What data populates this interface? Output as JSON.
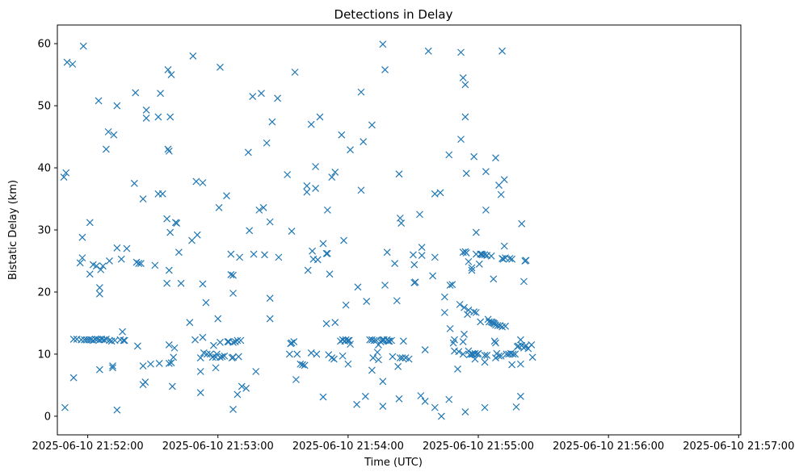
{
  "chart_data": {
    "type": "scatter",
    "title": "Detections in Delay",
    "xlabel": "Time (UTC)",
    "ylabel": "Bistatic Delay (km)",
    "marker": "x",
    "color": "#1f77b4",
    "grid": false,
    "x_range_seconds": [
      -14,
      301
    ],
    "ylim": [
      -3,
      63
    ],
    "x_ticks": [
      {
        "label": "2025-06-10 21:52:00",
        "offset_s": 0
      },
      {
        "label": "2025-06-10 21:53:00",
        "offset_s": 60
      },
      {
        "label": "2025-06-10 21:54:00",
        "offset_s": 120
      },
      {
        "label": "2025-06-10 21:55:00",
        "offset_s": 180
      },
      {
        "label": "2025-06-10 21:56:00",
        "offset_s": 240
      },
      {
        "label": "2025-06-10 21:57:00",
        "offset_s": 300
      }
    ],
    "y_ticks": [
      0,
      10,
      20,
      30,
      40,
      50,
      60
    ],
    "x_unit_note": "x values are seconds after 2025-06-10 21:52:00 UTC",
    "points": [
      [
        -11,
        38.5
      ],
      [
        -10,
        39.2
      ],
      [
        -10.5,
        1.4
      ],
      [
        -9.5,
        57
      ],
      [
        -7,
        56.7
      ],
      [
        -6.5,
        12.4
      ],
      [
        -6.5,
        6.2
      ],
      [
        -5,
        12.4
      ],
      [
        -3.5,
        24.7
      ],
      [
        -3,
        12.3
      ],
      [
        -2.5,
        28.8
      ],
      [
        -2.5,
        25.5
      ],
      [
        -2,
        59.6
      ],
      [
        -1.5,
        12.3
      ],
      [
        -0.5,
        12.3
      ],
      [
        0.5,
        12.3
      ],
      [
        1,
        31.2
      ],
      [
        1,
        22.9
      ],
      [
        1.5,
        12.3
      ],
      [
        2.5,
        12.2
      ],
      [
        2.5,
        24.4
      ],
      [
        3.5,
        12.4
      ],
      [
        4,
        24.2
      ],
      [
        4.5,
        12.4
      ],
      [
        5,
        50.8
      ],
      [
        5.5,
        12.3
      ],
      [
        5.5,
        20.7
      ],
      [
        5.5,
        19.7
      ],
      [
        5.5,
        7.5
      ],
      [
        6,
        23.6
      ],
      [
        6.5,
        12.4
      ],
      [
        7,
        24.2
      ],
      [
        7.5,
        12.3
      ],
      [
        8.5,
        43
      ],
      [
        8.5,
        12.4
      ],
      [
        9.5,
        45.8
      ],
      [
        10,
        12.2
      ],
      [
        10,
        25
      ],
      [
        11,
        12.1
      ],
      [
        11.5,
        8.1
      ],
      [
        11.5,
        7.8
      ],
      [
        12,
        45.3
      ],
      [
        12.5,
        12.2
      ],
      [
        13.5,
        50
      ],
      [
        13.5,
        27.1
      ],
      [
        13.5,
        1
      ],
      [
        15,
        12.3
      ],
      [
        15.5,
        25.3
      ],
      [
        16,
        13.6
      ],
      [
        16.5,
        12.2
      ],
      [
        17,
        12.2
      ],
      [
        18,
        27
      ],
      [
        21.5,
        37.5
      ],
      [
        22,
        52.1
      ],
      [
        22.5,
        24.8
      ],
      [
        23,
        11.3
      ],
      [
        23.5,
        24.6
      ],
      [
        24.5,
        24.6
      ],
      [
        25.5,
        8.1
      ],
      [
        25.5,
        35
      ],
      [
        25.5,
        5.1
      ],
      [
        26.5,
        5.5
      ],
      [
        27,
        49.3
      ],
      [
        27,
        48
      ],
      [
        29,
        8.4
      ],
      [
        31,
        24.3
      ],
      [
        32.5,
        48.2
      ],
      [
        32.5,
        35.8
      ],
      [
        33,
        8.5
      ],
      [
        33.5,
        52
      ],
      [
        34.5,
        35.8
      ],
      [
        36.5,
        31.8
      ],
      [
        36.5,
        21.4
      ],
      [
        37,
        55.8
      ],
      [
        37,
        43
      ],
      [
        37.5,
        42.7
      ],
      [
        37.5,
        23.5
      ],
      [
        37.5,
        11.5
      ],
      [
        37.5,
        8.5
      ],
      [
        38,
        48.2
      ],
      [
        38,
        29.6
      ],
      [
        38.5,
        55
      ],
      [
        38.5,
        8.6
      ],
      [
        39,
        4.8
      ],
      [
        39.5,
        9.5
      ],
      [
        40,
        11
      ],
      [
        40.5,
        31.2
      ],
      [
        41,
        31.1
      ],
      [
        42,
        26.4
      ],
      [
        43,
        21.4
      ],
      [
        47,
        15.1
      ],
      [
        48,
        28.3
      ],
      [
        48.5,
        58
      ],
      [
        49.5,
        12.3
      ],
      [
        50,
        37.8
      ],
      [
        50.5,
        29.2
      ],
      [
        52,
        3.8
      ],
      [
        52,
        9.4
      ],
      [
        52,
        7.2
      ],
      [
        53,
        37.6
      ],
      [
        53,
        21.3
      ],
      [
        53,
        12.7
      ],
      [
        53.5,
        10.2
      ],
      [
        54.5,
        18.3
      ],
      [
        55,
        10
      ],
      [
        56.5,
        10
      ],
      [
        57.5,
        9.5
      ],
      [
        58,
        11.4
      ],
      [
        59,
        7.8
      ],
      [
        59,
        9.5
      ],
      [
        59.5,
        10
      ],
      [
        60,
        15.7
      ],
      [
        60.5,
        33.6
      ],
      [
        61,
        56.2
      ],
      [
        61,
        9.5
      ],
      [
        61,
        11.9
      ],
      [
        62,
        9.6
      ],
      [
        63,
        9.7
      ],
      [
        64,
        35.5
      ],
      [
        64.5,
        12
      ],
      [
        65,
        12
      ],
      [
        66,
        26.1
      ],
      [
        66,
        22.8
      ],
      [
        66.5,
        9.4
      ],
      [
        67,
        22.7
      ],
      [
        67,
        19.8
      ],
      [
        67,
        11.9
      ],
      [
        67,
        9.5
      ],
      [
        67,
        1.1
      ],
      [
        68,
        12
      ],
      [
        69,
        12.2
      ],
      [
        69,
        3.5
      ],
      [
        69.5,
        9.6
      ],
      [
        70,
        25.6
      ],
      [
        70.5,
        12.2
      ],
      [
        71,
        4.8
      ],
      [
        73,
        4.5
      ],
      [
        74,
        42.5
      ],
      [
        74.5,
        29.9
      ],
      [
        76,
        51.5
      ],
      [
        76.5,
        26.1
      ],
      [
        77.5,
        7.2
      ],
      [
        79,
        33.2
      ],
      [
        80,
        52
      ],
      [
        81,
        33.6
      ],
      [
        81.5,
        26
      ],
      [
        82.5,
        44
      ],
      [
        84,
        31.3
      ],
      [
        84,
        15.7
      ],
      [
        84,
        19
      ],
      [
        85,
        47.4
      ],
      [
        87.5,
        51.2
      ],
      [
        88,
        25.6
      ],
      [
        92,
        38.9
      ],
      [
        93,
        10
      ],
      [
        93.5,
        11.7
      ],
      [
        94,
        11.8
      ],
      [
        94,
        29.8
      ],
      [
        95,
        12
      ],
      [
        95.5,
        55.4
      ],
      [
        96,
        5.9
      ],
      [
        96.5,
        10
      ],
      [
        98,
        8.4
      ],
      [
        99,
        8.3
      ],
      [
        100,
        8.2
      ],
      [
        101,
        37.1
      ],
      [
        101,
        36.1
      ],
      [
        101.5,
        23.5
      ],
      [
        103,
        47
      ],
      [
        103,
        10.2
      ],
      [
        103.5,
        26.6
      ],
      [
        104,
        25.3
      ],
      [
        105,
        36.7
      ],
      [
        105,
        40.2
      ],
      [
        105.5,
        10
      ],
      [
        106,
        25.2
      ],
      [
        107,
        48.2
      ],
      [
        108.5,
        3.1
      ],
      [
        108.5,
        27.8
      ],
      [
        110,
        26.2
      ],
      [
        110,
        14.9
      ],
      [
        110.5,
        26.2
      ],
      [
        110.5,
        33.2
      ],
      [
        111,
        9.9
      ],
      [
        111.5,
        22.9
      ],
      [
        112.5,
        38.5
      ],
      [
        112.5,
        9.4
      ],
      [
        113.5,
        9.2
      ],
      [
        114,
        39.3
      ],
      [
        114,
        15.1
      ],
      [
        116.5,
        12.1
      ],
      [
        117,
        45.3
      ],
      [
        117.5,
        12.3
      ],
      [
        117.5,
        9.7
      ],
      [
        118,
        28.3
      ],
      [
        118.5,
        12.1
      ],
      [
        119,
        17.9
      ],
      [
        119,
        12.3
      ],
      [
        120,
        12.2
      ],
      [
        120,
        8.4
      ],
      [
        120.5,
        12.2
      ],
      [
        121,
        42.9
      ],
      [
        121,
        11.6
      ],
      [
        124,
        1.9
      ],
      [
        124.5,
        20.8
      ],
      [
        126,
        36.4
      ],
      [
        126,
        52.2
      ],
      [
        127,
        44.2
      ],
      [
        128,
        3.2
      ],
      [
        128.5,
        18.5
      ],
      [
        130,
        12.3
      ],
      [
        131,
        46.9
      ],
      [
        131,
        12.3
      ],
      [
        131,
        7.4
      ],
      [
        131.5,
        9.4
      ],
      [
        132,
        12.2
      ],
      [
        133,
        12.2
      ],
      [
        133.5,
        10.3
      ],
      [
        134,
        11.5
      ],
      [
        134,
        9.1
      ],
      [
        135,
        12
      ],
      [
        135.5,
        12.2
      ],
      [
        136,
        12.3
      ],
      [
        136,
        59.9
      ],
      [
        136,
        1.6
      ],
      [
        136,
        5.6
      ],
      [
        136.5,
        12.3
      ],
      [
        137,
        55.8
      ],
      [
        137,
        21.1
      ],
      [
        138,
        12.3
      ],
      [
        138,
        26.4
      ],
      [
        138.5,
        12.1
      ],
      [
        139,
        12.1
      ],
      [
        140,
        12.2
      ],
      [
        140.5,
        9.6
      ],
      [
        141.5,
        24.6
      ],
      [
        142.5,
        18.6
      ],
      [
        143,
        8
      ],
      [
        143.5,
        39
      ],
      [
        143.5,
        2.8
      ],
      [
        144,
        9.4
      ],
      [
        144,
        31.9
      ],
      [
        144.5,
        31.1
      ],
      [
        145,
        9.4
      ],
      [
        145.5,
        12.1
      ],
      [
        146.5,
        9.4
      ],
      [
        148,
        9.2
      ],
      [
        150,
        26
      ],
      [
        150.5,
        21.5
      ],
      [
        150.5,
        24.4
      ],
      [
        151,
        21.6
      ],
      [
        153,
        32.5
      ],
      [
        153.5,
        3.3
      ],
      [
        154,
        27.2
      ],
      [
        154,
        25.9
      ],
      [
        155.5,
        2.4
      ],
      [
        155.5,
        10.7
      ],
      [
        157,
        58.8
      ],
      [
        159,
        22.6
      ],
      [
        160,
        35.8
      ],
      [
        160,
        25.6
      ],
      [
        160,
        1.4
      ],
      [
        162.5,
        36
      ],
      [
        163,
        0
      ],
      [
        164.5,
        16.7
      ],
      [
        164.5,
        19.2
      ],
      [
        166.5,
        42.1
      ],
      [
        166.5,
        2.7
      ],
      [
        167,
        14.1
      ],
      [
        167,
        21.1
      ],
      [
        168,
        21.2
      ],
      [
        168.5,
        11.8
      ],
      [
        169,
        12.3
      ],
      [
        169,
        10.5
      ],
      [
        170.5,
        7.6
      ],
      [
        171,
        10.4
      ],
      [
        171.5,
        18
      ],
      [
        172,
        58.6
      ],
      [
        172,
        44.6
      ],
      [
        173,
        54.5
      ],
      [
        173,
        26.4
      ],
      [
        173,
        12
      ],
      [
        173,
        10
      ],
      [
        173.5,
        13.2
      ],
      [
        173.5,
        17.5
      ],
      [
        174,
        48.2
      ],
      [
        174,
        53.4
      ],
      [
        174,
        26.5
      ],
      [
        174,
        0.7
      ],
      [
        174.5,
        39.1
      ],
      [
        174.5,
        26.3
      ],
      [
        175,
        16.4
      ],
      [
        175.5,
        17.1
      ],
      [
        175.5,
        24.9
      ],
      [
        175.5,
        10.5
      ],
      [
        176,
        9.9
      ],
      [
        177,
        23.5
      ],
      [
        177,
        23.9
      ],
      [
        177,
        10
      ],
      [
        177.5,
        10
      ],
      [
        178,
        16.8
      ],
      [
        178,
        41.8
      ],
      [
        178.5,
        10.1
      ],
      [
        178.5,
        9.2
      ],
      [
        179,
        16.7
      ],
      [
        179,
        29.6
      ],
      [
        179,
        26.1
      ],
      [
        179.5,
        10
      ],
      [
        180,
        10.1
      ],
      [
        180.5,
        24.5
      ],
      [
        181,
        26.1
      ],
      [
        181,
        15.2
      ],
      [
        181.5,
        26.1
      ],
      [
        182,
        26
      ],
      [
        183,
        26
      ],
      [
        183,
        9.8
      ],
      [
        183,
        8.7
      ],
      [
        183,
        1.4
      ],
      [
        183.5,
        33.2
      ],
      [
        183.5,
        39.4
      ],
      [
        184,
        25.9
      ],
      [
        184,
        9.8
      ],
      [
        184.5,
        15.6
      ],
      [
        185,
        15.2
      ],
      [
        186,
        25.8
      ],
      [
        186,
        15.2
      ],
      [
        186.5,
        15.1
      ],
      [
        187,
        22.1
      ],
      [
        187,
        15
      ],
      [
        187.5,
        12.1
      ],
      [
        187.5,
        14.9
      ],
      [
        188,
        14.7
      ],
      [
        188,
        11.8
      ],
      [
        188,
        9.4
      ],
      [
        188,
        41.6
      ],
      [
        188.5,
        10.1
      ],
      [
        189,
        14.6
      ],
      [
        189.5,
        37.2
      ],
      [
        189.5,
        9.7
      ],
      [
        190,
        14.6
      ],
      [
        190.5,
        35.7
      ],
      [
        190.5,
        9.7
      ],
      [
        191,
        58.8
      ],
      [
        191,
        14.4
      ],
      [
        191,
        25.4
      ],
      [
        191.5,
        25.3
      ],
      [
        192,
        27.4
      ],
      [
        192,
        38.1
      ],
      [
        192.5,
        14.5
      ],
      [
        192.5,
        25.5
      ],
      [
        193,
        10
      ],
      [
        194,
        10
      ],
      [
        194.5,
        25.4
      ],
      [
        195,
        10.1
      ],
      [
        195.5,
        25.3
      ],
      [
        195.5,
        8.3
      ],
      [
        196,
        10
      ],
      [
        197,
        10
      ],
      [
        197.5,
        1.5
      ],
      [
        198,
        11.2
      ],
      [
        198.5,
        11.3
      ],
      [
        199.5,
        8.4
      ],
      [
        199.5,
        12.3
      ],
      [
        199.5,
        3.2
      ],
      [
        200,
        31
      ],
      [
        200,
        11.4
      ],
      [
        201,
        21.7
      ],
      [
        201,
        11
      ],
      [
        201.5,
        11.2
      ],
      [
        201.5,
        25
      ],
      [
        202,
        25.1
      ],
      [
        202,
        11.4
      ],
      [
        203,
        10.9
      ],
      [
        204.5,
        11.5
      ],
      [
        205,
        9.5
      ]
    ]
  }
}
